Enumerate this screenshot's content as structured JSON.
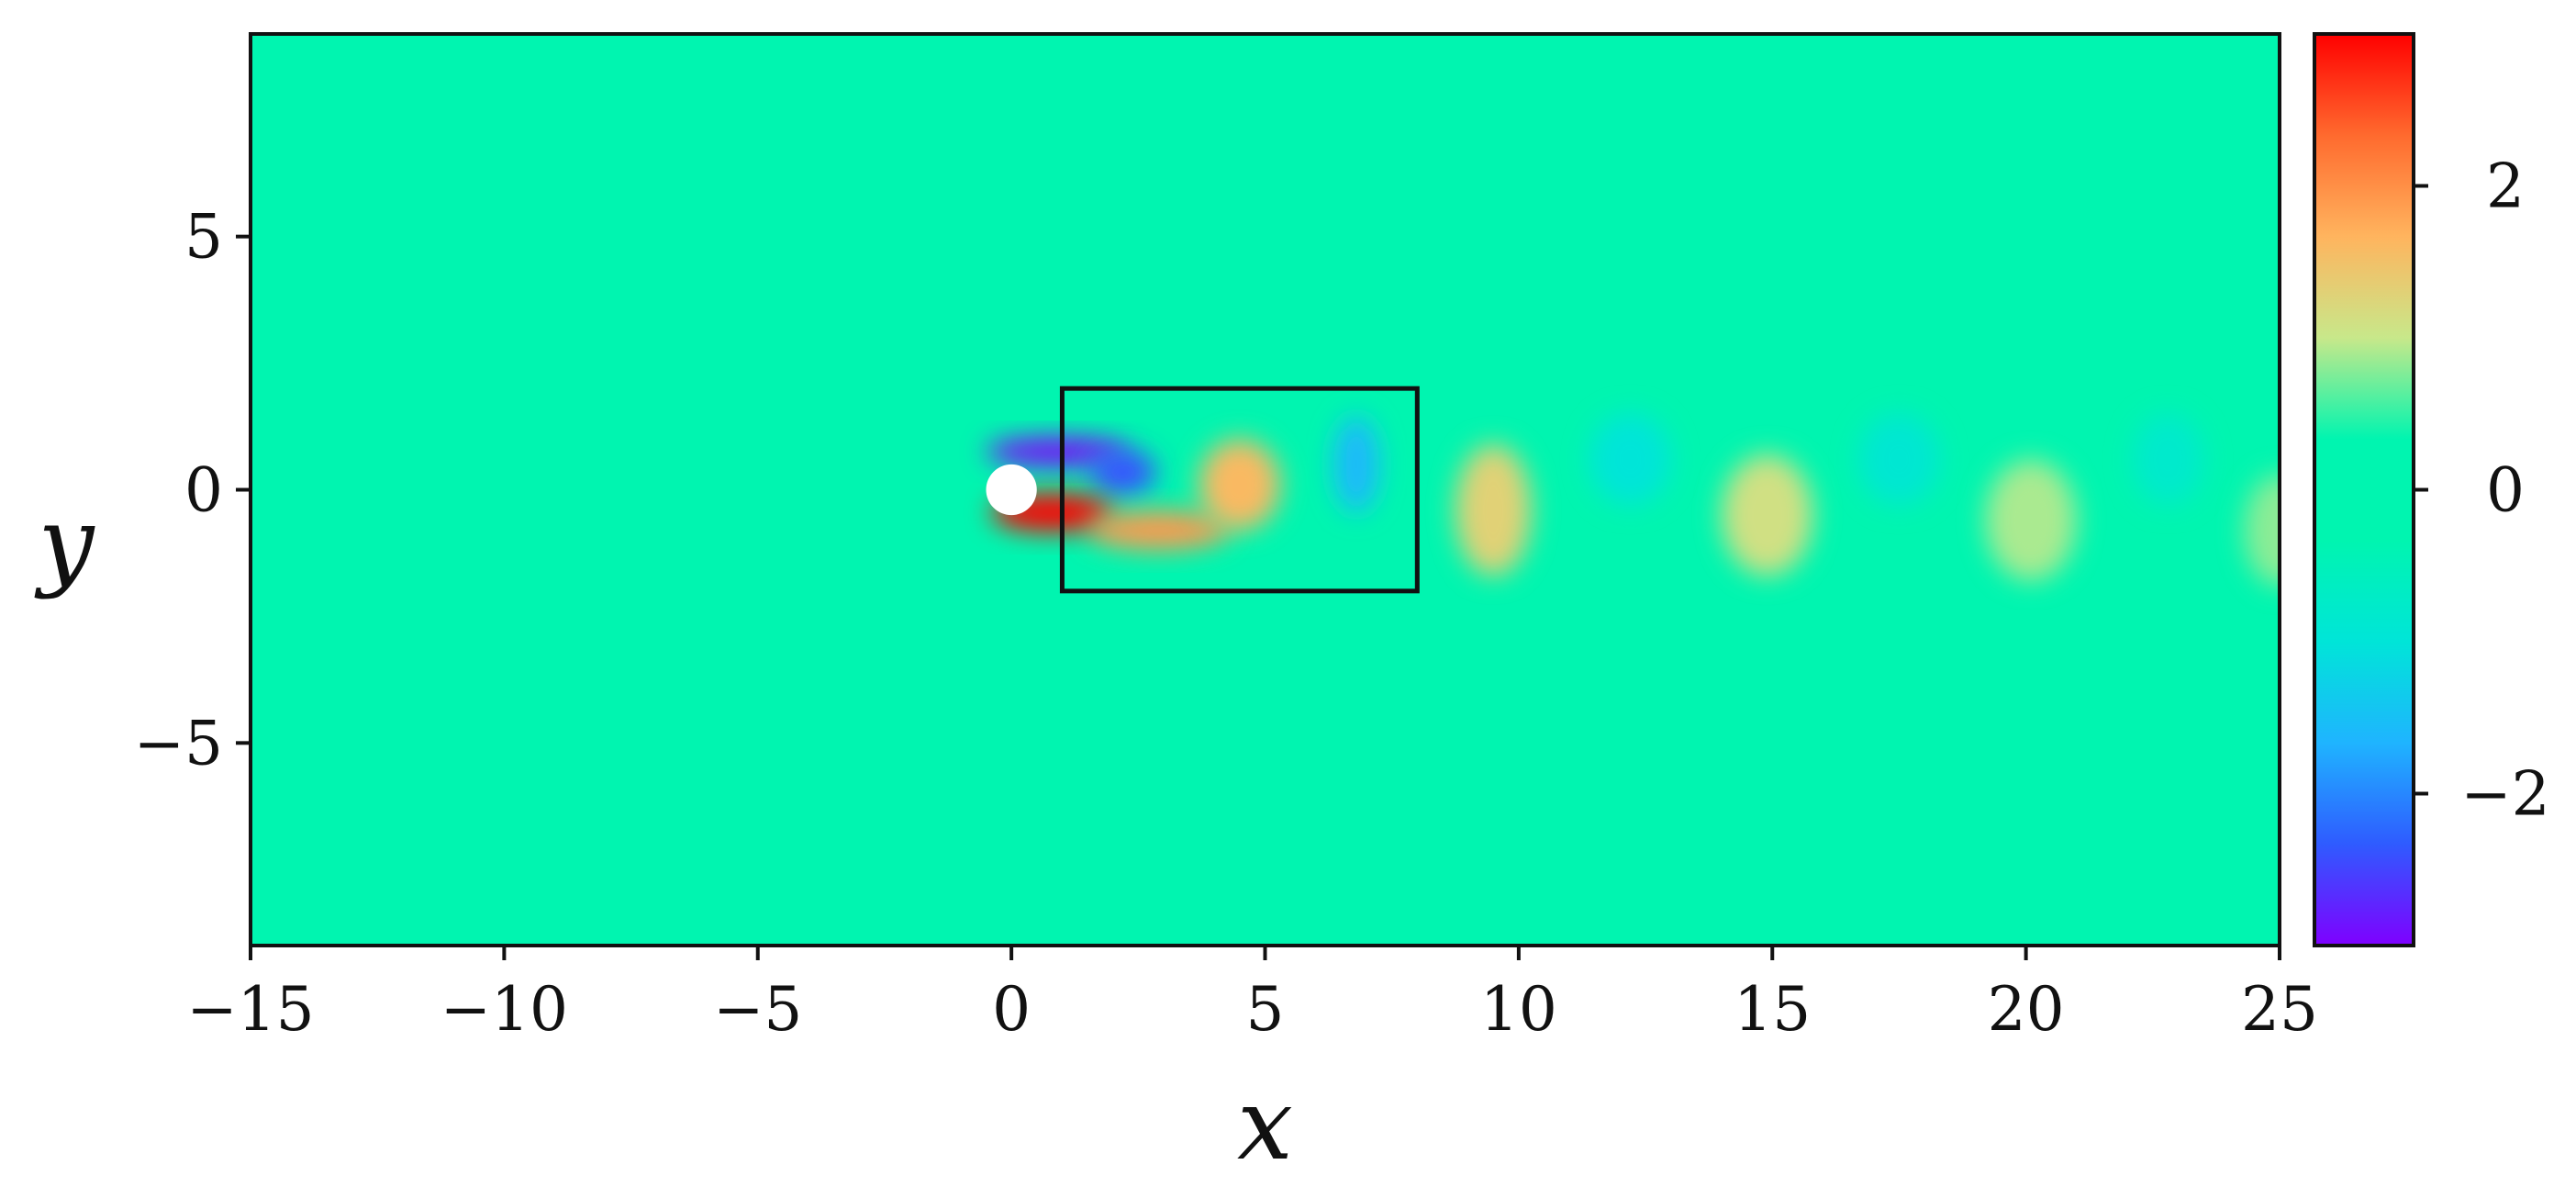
{
  "chart_data": {
    "type": "heatmap",
    "title": "",
    "xlabel": "x",
    "ylabel": "y",
    "xlim": [
      -15,
      25
    ],
    "ylim": [
      -9,
      9
    ],
    "xticks": [
      -15,
      -10,
      -5,
      0,
      5,
      10,
      15,
      20,
      25
    ],
    "yticks": [
      -5,
      0,
      5
    ],
    "colorbar": {
      "range": [
        -3,
        3
      ],
      "ticks": [
        -2,
        0,
        2
      ],
      "colormap": "rainbow",
      "stops": [
        "#7f00ff",
        "#2f5bff",
        "#1fb4ff",
        "#00e5d8",
        "#00f5b0",
        "#00f5b0",
        "#c8e88a",
        "#ffb45e",
        "#ff6a2e",
        "#ff0000"
      ]
    },
    "background_value": 0,
    "cylinder": {
      "center": [
        0,
        0
      ],
      "radius": 0.5,
      "color": "#ffffff"
    },
    "box": {
      "x": [
        1,
        8
      ],
      "y": [
        -2,
        2
      ]
    },
    "vortices": [
      {
        "cx": 0.9,
        "cy": 0.75,
        "rx": 1.4,
        "ry": 0.28,
        "value": -3
      },
      {
        "cx": 2.2,
        "cy": 0.35,
        "rx": 0.65,
        "ry": 0.45,
        "value": -2.4
      },
      {
        "cx": 0.8,
        "cy": -0.45,
        "rx": 1.2,
        "ry": 0.38,
        "value": 3
      },
      {
        "cx": 2.9,
        "cy": -0.8,
        "rx": 1.4,
        "ry": 0.38,
        "value": 1.9
      },
      {
        "cx": 4.5,
        "cy": 0.1,
        "rx": 0.8,
        "ry": 0.9,
        "value": 1.6
      },
      {
        "cx": 6.8,
        "cy": 0.5,
        "rx": 0.45,
        "ry": 0.95,
        "value": -1.6
      },
      {
        "cx": 9.5,
        "cy": -0.4,
        "rx": 0.75,
        "ry": 1.3,
        "value": 1.3
      },
      {
        "cx": 12.2,
        "cy": 0.6,
        "rx": 0.8,
        "ry": 0.9,
        "value": -1.0
      },
      {
        "cx": 14.9,
        "cy": -0.5,
        "rx": 0.9,
        "ry": 1.2,
        "value": 1.1
      },
      {
        "cx": 17.5,
        "cy": 0.6,
        "rx": 0.8,
        "ry": 0.9,
        "value": -0.9
      },
      {
        "cx": 20.1,
        "cy": -0.6,
        "rx": 0.9,
        "ry": 1.2,
        "value": 0.9
      },
      {
        "cx": 22.8,
        "cy": 0.6,
        "rx": 0.7,
        "ry": 0.9,
        "value": -0.8
      },
      {
        "cx": 25.0,
        "cy": -0.8,
        "rx": 0.7,
        "ry": 1.1,
        "value": 0.8
      }
    ]
  }
}
